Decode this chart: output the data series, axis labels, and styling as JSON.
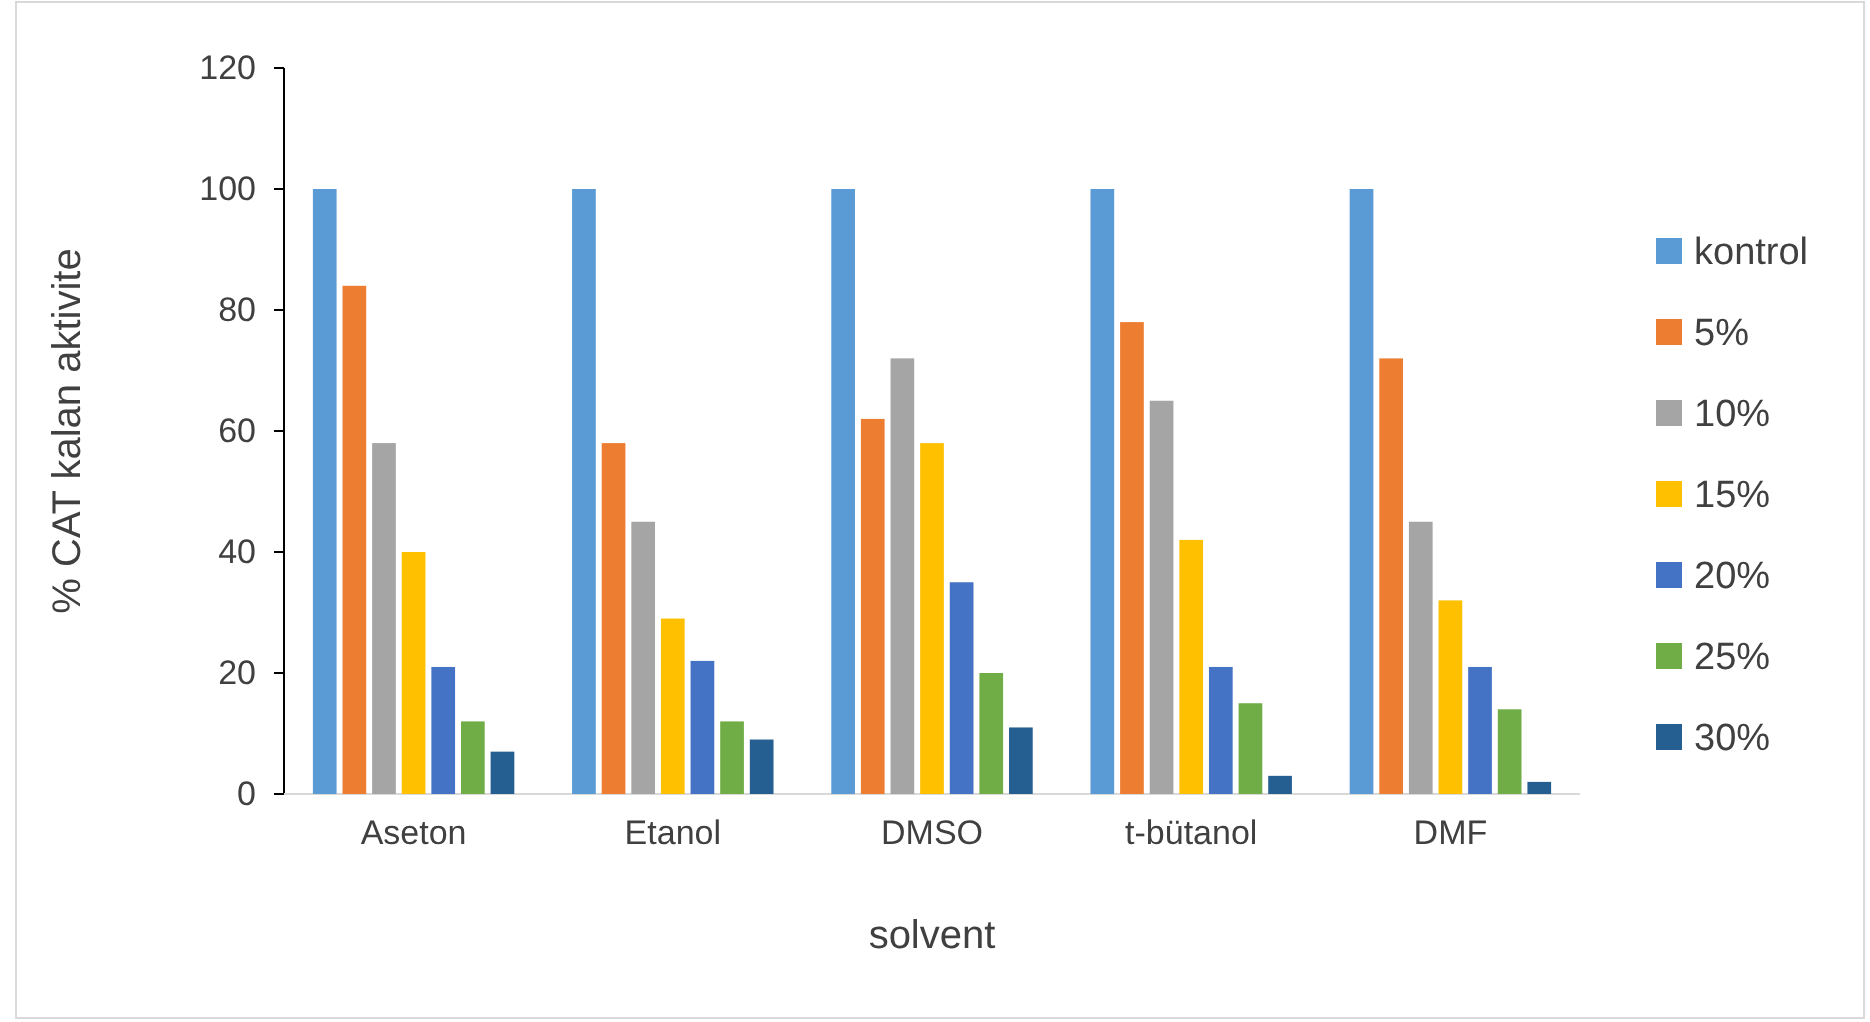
{
  "chart_data": {
    "type": "bar",
    "xlabel": "solvent",
    "ylabel": "% CAT kalan aktivite",
    "categories": [
      "Aseton",
      "Etanol",
      "DMSO",
      "t-bütanol",
      "DMF"
    ],
    "series": [
      {
        "name": "kontrol",
        "color": "#5b9bd5",
        "values": [
          100,
          100,
          100,
          100,
          100
        ]
      },
      {
        "name": "5%",
        "color": "#ed7d31",
        "values": [
          84,
          58,
          62,
          78,
          72
        ]
      },
      {
        "name": "10%",
        "color": "#a5a5a5",
        "values": [
          58,
          45,
          72,
          65,
          45
        ]
      },
      {
        "name": "15%",
        "color": "#ffc000",
        "values": [
          40,
          29,
          58,
          42,
          32
        ]
      },
      {
        "name": "20%",
        "color": "#4472c4",
        "values": [
          21,
          22,
          35,
          21,
          21
        ]
      },
      {
        "name": "25%",
        "color": "#70ad47",
        "values": [
          12,
          12,
          20,
          15,
          14
        ]
      },
      {
        "name": "30%",
        "color": "#255e91",
        "values": [
          7,
          9,
          11,
          3,
          2
        ]
      }
    ],
    "ylim": [
      0,
      120
    ],
    "yticks": [
      0,
      20,
      40,
      60,
      80,
      100,
      120
    ],
    "grid": false,
    "legend": "right"
  }
}
